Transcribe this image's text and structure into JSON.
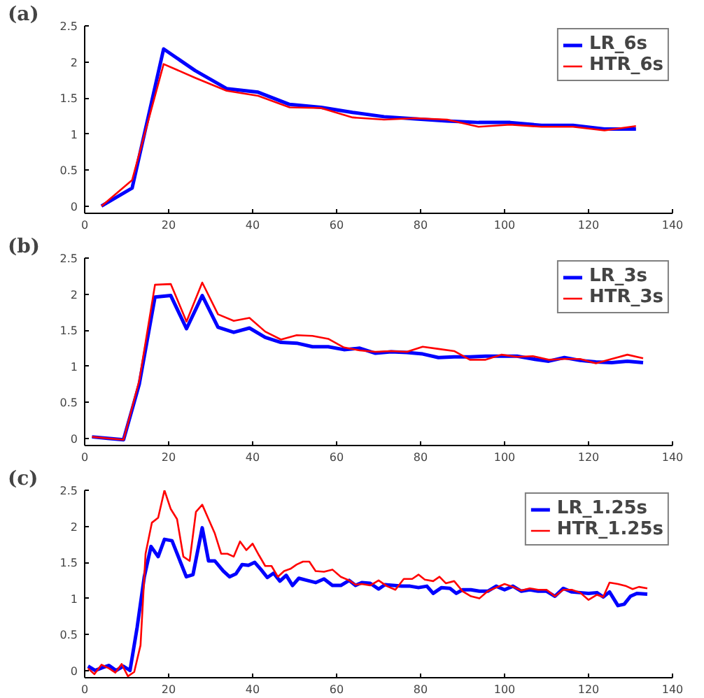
{
  "chart_data": [
    {
      "type": "line",
      "title": "(a)",
      "xlim": [
        0,
        140
      ],
      "ylim": [
        -0.1,
        2.5
      ],
      "xticks": [
        0,
        20,
        40,
        60,
        80,
        100,
        120,
        140
      ],
      "yticks": [
        0,
        0.5,
        1,
        1.5,
        2,
        2.5
      ],
      "grid": false,
      "legend": "top right",
      "series": [
        {
          "name": "LR_6s",
          "color": "#0000ff",
          "x": [
            4,
            11.3,
            18.8,
            26.3,
            33.8,
            41.3,
            48.8,
            56.3,
            63.8,
            71.3,
            78.8,
            86.3,
            93.8,
            101.3,
            108.8,
            116.3,
            123.8,
            131.3
          ],
          "values": [
            0,
            0.25,
            2.18,
            1.88,
            1.63,
            1.58,
            1.41,
            1.37,
            1.3,
            1.24,
            1.21,
            1.18,
            1.16,
            1.16,
            1.12,
            1.12,
            1.07,
            1.07
          ]
        },
        {
          "name": "HTR_6s",
          "color": "#ff0000",
          "x": [
            4,
            11.3,
            18.8,
            26.3,
            33.8,
            41.3,
            48.8,
            56.3,
            63.8,
            71.3,
            78.8,
            86.3,
            93.8,
            101.3,
            108.8,
            116.3,
            123.8,
            131.3
          ],
          "values": [
            0,
            0.36,
            1.97,
            1.78,
            1.6,
            1.53,
            1.37,
            1.36,
            1.23,
            1.2,
            1.22,
            1.2,
            1.1,
            1.13,
            1.1,
            1.1,
            1.05,
            1.11
          ]
        }
      ]
    },
    {
      "type": "line",
      "title": "(b)",
      "xlim": [
        0,
        140
      ],
      "ylim": [
        -0.1,
        2.5
      ],
      "xticks": [
        0,
        20,
        40,
        60,
        80,
        100,
        120,
        140
      ],
      "yticks": [
        0,
        0.5,
        1,
        1.5,
        2,
        2.5
      ],
      "grid": false,
      "legend": "top right",
      "series": [
        {
          "name": "LR_3s",
          "color": "#0000ff",
          "x": [
            1.75,
            5.5,
            9.25,
            13,
            16.75,
            20.5,
            24.25,
            28,
            31.75,
            35.5,
            39.25,
            43,
            46.75,
            50.5,
            54.25,
            58,
            61.75,
            65.5,
            69.25,
            73,
            76.75,
            80.5,
            84.25,
            88,
            91.75,
            95.5,
            99.25,
            103,
            106.75,
            110.5,
            114.25,
            118,
            121.75,
            125.5,
            129.25,
            133
          ],
          "values": [
            0.02,
            0.0,
            -0.02,
            0.75,
            1.96,
            1.98,
            1.52,
            1.98,
            1.54,
            1.47,
            1.53,
            1.4,
            1.33,
            1.32,
            1.27,
            1.27,
            1.23,
            1.25,
            1.18,
            1.2,
            1.19,
            1.17,
            1.12,
            1.13,
            1.13,
            1.14,
            1.14,
            1.14,
            1.1,
            1.07,
            1.12,
            1.08,
            1.06,
            1.05,
            1.07,
            1.05
          ]
        },
        {
          "name": "HTR_3s",
          "color": "#ff0000",
          "x": [
            1.75,
            5.5,
            9.25,
            13,
            16.75,
            20.5,
            24.25,
            28,
            31.75,
            35.5,
            39.25,
            43,
            46.75,
            50.5,
            54.25,
            58,
            61.75,
            65.5,
            69.25,
            73,
            76.75,
            80.5,
            84.25,
            88,
            91.75,
            95.5,
            99.25,
            103,
            106.75,
            110.5,
            114.25,
            118,
            121.75,
            125.5,
            129.25,
            133
          ],
          "values": [
            0.02,
            0.0,
            -0.02,
            0.8,
            2.13,
            2.14,
            1.62,
            2.16,
            1.72,
            1.63,
            1.67,
            1.48,
            1.37,
            1.43,
            1.42,
            1.38,
            1.26,
            1.22,
            1.2,
            1.21,
            1.2,
            1.27,
            1.24,
            1.21,
            1.09,
            1.09,
            1.16,
            1.13,
            1.14,
            1.09,
            1.1,
            1.1,
            1.04,
            1.1,
            1.16,
            1.11
          ]
        }
      ]
    },
    {
      "type": "line",
      "title": "(c)",
      "xlim": [
        0,
        140
      ],
      "ylim": [
        -0.1,
        2.5
      ],
      "xticks": [
        0,
        20,
        40,
        60,
        80,
        100,
        120,
        140
      ],
      "yticks": [
        0,
        0.5,
        1,
        1.5,
        2,
        2.5
      ],
      "grid": false,
      "legend": "top right",
      "series": [
        {
          "name": "LR_1.25s",
          "color": "#0000ff",
          "x": [
            0.8,
            2.5,
            4.2,
            5.8,
            7.5,
            9.2,
            10.8,
            12.5,
            14.2,
            15.8,
            17.5,
            19,
            20.8,
            22.5,
            24.2,
            25.8,
            28,
            29.5,
            31,
            33,
            34.5,
            36,
            37.5,
            39,
            40.5,
            42,
            43.5,
            45,
            46.5,
            48,
            49.5,
            51,
            53,
            55,
            57,
            59,
            61,
            63,
            64.5,
            66,
            68,
            70,
            71.5,
            73.5,
            75.5,
            77.5,
            79.5,
            81.5,
            83,
            85,
            87,
            88.5,
            90,
            92,
            94,
            96,
            98,
            100,
            102,
            104,
            106,
            108,
            110,
            112,
            114,
            116,
            118,
            120,
            122,
            123.5,
            125,
            127,
            128.5,
            130,
            131.5,
            134
          ],
          "values": [
            0.06,
            0.0,
            0.04,
            0.07,
            0.0,
            0.06,
            0.0,
            0.6,
            1.3,
            1.72,
            1.58,
            1.82,
            1.8,
            1.55,
            1.3,
            1.33,
            1.98,
            1.52,
            1.52,
            1.38,
            1.3,
            1.34,
            1.47,
            1.46,
            1.5,
            1.4,
            1.29,
            1.35,
            1.24,
            1.32,
            1.18,
            1.28,
            1.25,
            1.22,
            1.27,
            1.18,
            1.18,
            1.25,
            1.18,
            1.22,
            1.21,
            1.13,
            1.19,
            1.18,
            1.17,
            1.17,
            1.15,
            1.17,
            1.07,
            1.15,
            1.14,
            1.07,
            1.12,
            1.12,
            1.1,
            1.1,
            1.17,
            1.12,
            1.17,
            1.1,
            1.12,
            1.1,
            1.1,
            1.03,
            1.14,
            1.09,
            1.08,
            1.07,
            1.08,
            1.02,
            1.09,
            0.9,
            0.92,
            1.03,
            1.07,
            1.06
          ]
        },
        {
          "name": "HTR_1.25s",
          "color": "#ff0000",
          "x": [
            0.8,
            2.3,
            4,
            5.8,
            7.3,
            8.8,
            10.3,
            11.8,
            13.3,
            14.5,
            16,
            17.5,
            19,
            20.5,
            22,
            23.5,
            25,
            26.5,
            28,
            29.5,
            31,
            32.5,
            34,
            35.5,
            37,
            38.5,
            40,
            41.5,
            43,
            44.5,
            46,
            47.5,
            49,
            50.5,
            52,
            53.5,
            55,
            57,
            59,
            61,
            63,
            64.5,
            66,
            68,
            70,
            72,
            74,
            76,
            78,
            79.5,
            81,
            83,
            84.5,
            86,
            88,
            90,
            92,
            94,
            96,
            98,
            100,
            102,
            104,
            106,
            108,
            110,
            112,
            114,
            116,
            118,
            120,
            122,
            123.5,
            125,
            127,
            129,
            130.5,
            132,
            134
          ],
          "values": [
            0.03,
            -0.05,
            0.08,
            0.03,
            -0.03,
            0.09,
            -0.08,
            -0.02,
            0.35,
            1.62,
            2.05,
            2.12,
            2.5,
            2.24,
            2.1,
            1.58,
            1.52,
            2.2,
            2.3,
            2.1,
            1.9,
            1.62,
            1.62,
            1.58,
            1.79,
            1.67,
            1.76,
            1.6,
            1.45,
            1.45,
            1.3,
            1.38,
            1.41,
            1.47,
            1.51,
            1.51,
            1.38,
            1.37,
            1.4,
            1.3,
            1.25,
            1.19,
            1.2,
            1.18,
            1.25,
            1.17,
            1.12,
            1.27,
            1.27,
            1.33,
            1.26,
            1.24,
            1.3,
            1.21,
            1.24,
            1.1,
            1.03,
            1.0,
            1.1,
            1.15,
            1.2,
            1.16,
            1.11,
            1.14,
            1.12,
            1.12,
            1.03,
            1.12,
            1.12,
            1.08,
            0.98,
            1.05,
            1.02,
            1.22,
            1.2,
            1.17,
            1.13,
            1.16,
            1.14
          ]
        }
      ]
    }
  ]
}
